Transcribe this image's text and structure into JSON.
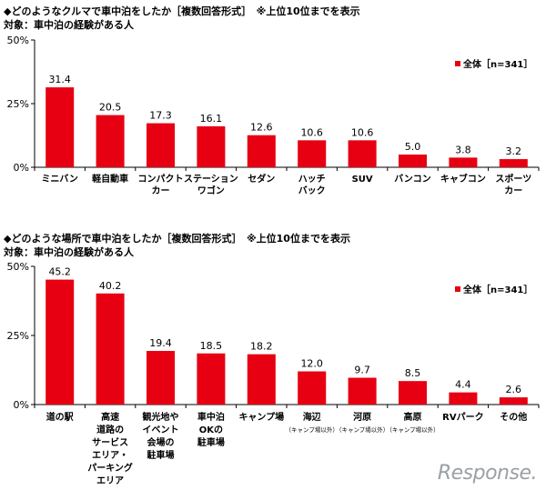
{
  "colors": {
    "bar": "#e60012",
    "axis": "#000000"
  },
  "watermark": "Response.",
  "chart_data": [
    {
      "type": "bar",
      "title": "◆どのようなクルマで車中泊をしたか［複数回答形式］　※上位10位までを表示",
      "subtitle": "対象：車中泊の経験がある人",
      "legend": "全体［n=341］",
      "legend_position": "top-right",
      "ylim": [
        0,
        50
      ],
      "yticks": [
        "0%",
        "25%",
        "50%"
      ],
      "categories": [
        "ミニバン",
        "軽自動車",
        "コンパクト\nカー",
        "ステーション\nワゴン",
        "セダン",
        "ハッチ\nバック",
        "SUV",
        "バンコン",
        "キャブコン",
        "スポーツ\nカー"
      ],
      "sublabels": [
        "",
        "",
        "",
        "",
        "",
        "",
        "",
        "",
        "",
        ""
      ],
      "values": [
        31.4,
        20.5,
        17.3,
        16.1,
        12.6,
        10.6,
        10.6,
        5.0,
        3.8,
        3.2
      ],
      "value_labels": [
        "31.4",
        "20.5",
        "17.3",
        "16.1",
        "12.6",
        "10.6",
        "10.6",
        "5.0",
        "3.8",
        "3.2"
      ]
    },
    {
      "type": "bar",
      "title": "◆どのような場所で車中泊をしたか［複数回答形式］　※上位10位までを表示",
      "subtitle": "対象：車中泊の経験がある人",
      "legend": "全体［n=341］",
      "legend_position": "top-right",
      "ylim": [
        0,
        50
      ],
      "yticks": [
        "0%",
        "25%",
        "50%"
      ],
      "categories": [
        "道の駅",
        "高速\n道路の\nサービス\nエリア・\nパーキング\nエリア",
        "観光地や\nイベント\n会場の\n駐車場",
        "車中泊\nOKの\n駐車場",
        "キャンプ場",
        "海辺",
        "河原",
        "高原",
        "RVパーク",
        "その他"
      ],
      "sublabels": [
        "",
        "",
        "",
        "",
        "",
        "（キャンプ場以外）",
        "（キャンプ場以外）",
        "（キャンプ場以外）",
        "",
        ""
      ],
      "values": [
        45.2,
        40.2,
        19.4,
        18.5,
        18.2,
        12.0,
        9.7,
        8.5,
        4.4,
        2.6
      ],
      "value_labels": [
        "45.2",
        "40.2",
        "19.4",
        "18.5",
        "18.2",
        "12.0",
        "9.7",
        "8.5",
        "4.4",
        "2.6"
      ]
    }
  ]
}
